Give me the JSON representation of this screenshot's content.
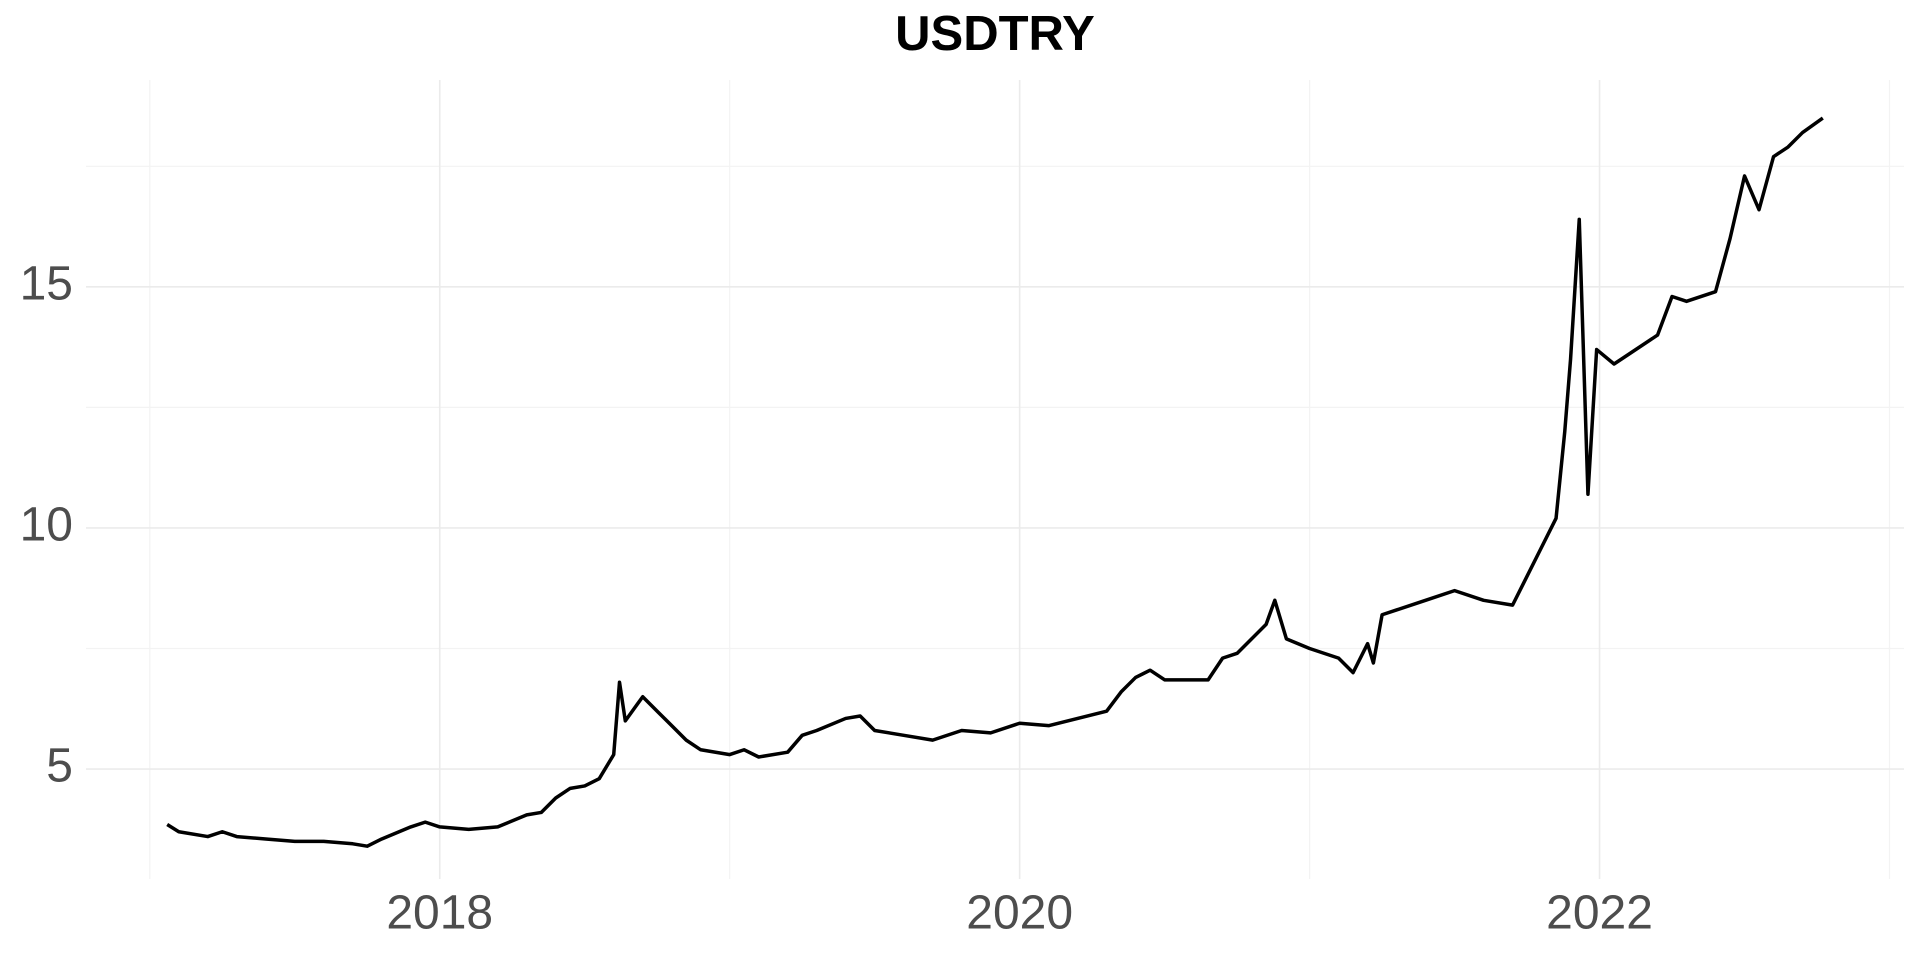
{
  "chart_data": {
    "type": "line",
    "title": "USDTRY",
    "color": "#000000",
    "grid": true,
    "x": [
      2017.06,
      2017.1,
      2017.2,
      2017.25,
      2017.3,
      2017.4,
      2017.5,
      2017.6,
      2017.7,
      2017.75,
      2017.8,
      2017.9,
      2017.95,
      2018.0,
      2018.1,
      2018.2,
      2018.3,
      2018.35,
      2018.4,
      2018.45,
      2018.5,
      2018.55,
      2018.6,
      2018.62,
      2018.64,
      2018.7,
      2018.75,
      2018.8,
      2018.85,
      2018.9,
      2019.0,
      2019.05,
      2019.1,
      2019.2,
      2019.25,
      2019.3,
      2019.4,
      2019.45,
      2019.5,
      2019.6,
      2019.7,
      2019.8,
      2019.9,
      2020.0,
      2020.1,
      2020.2,
      2020.3,
      2020.35,
      2020.4,
      2020.45,
      2020.5,
      2020.6,
      2020.65,
      2020.7,
      2020.75,
      2020.8,
      2020.85,
      2020.88,
      2020.92,
      2021.0,
      2021.1,
      2021.15,
      2021.2,
      2021.22,
      2021.25,
      2021.3,
      2021.4,
      2021.5,
      2021.6,
      2021.7,
      2021.75,
      2021.8,
      2021.85,
      2021.88,
      2021.9,
      2021.93,
      2021.96,
      2021.99,
      2022.05,
      2022.1,
      2022.2,
      2022.25,
      2022.3,
      2022.4,
      2022.45,
      2022.5,
      2022.55,
      2022.6,
      2022.65,
      2022.7,
      2022.77
    ],
    "values": [
      3.85,
      3.7,
      3.6,
      3.7,
      3.6,
      3.55,
      3.5,
      3.5,
      3.45,
      3.4,
      3.55,
      3.8,
      3.9,
      3.8,
      3.75,
      3.8,
      4.05,
      4.1,
      4.4,
      4.6,
      4.65,
      4.8,
      5.3,
      6.8,
      6.0,
      6.5,
      6.2,
      5.9,
      5.6,
      5.4,
      5.3,
      5.4,
      5.25,
      5.35,
      5.7,
      5.8,
      6.05,
      6.1,
      5.8,
      5.7,
      5.6,
      5.8,
      5.75,
      5.95,
      5.9,
      6.05,
      6.2,
      6.6,
      6.9,
      7.05,
      6.85,
      6.85,
      6.85,
      7.3,
      7.4,
      7.7,
      8.0,
      8.5,
      7.7,
      7.5,
      7.3,
      7.0,
      7.6,
      7.2,
      8.2,
      8.3,
      8.5,
      8.7,
      8.5,
      8.4,
      9.0,
      9.6,
      10.2,
      12.0,
      13.5,
      16.4,
      10.7,
      13.7,
      13.4,
      13.6,
      14.0,
      14.8,
      14.7,
      14.9,
      16.0,
      17.3,
      16.6,
      17.7,
      17.9,
      18.2,
      18.5
    ],
    "xlim": [
      2016.78,
      2023.05
    ],
    "xticks": [
      2018,
      2020,
      2022
    ],
    "xminorticks": [
      2017,
      2019,
      2021,
      2023
    ],
    "ylim": [
      2.72,
      19.29
    ],
    "yticks": [
      5,
      10,
      15
    ],
    "yminorticks": [
      7.5,
      12.5,
      17.5
    ]
  }
}
